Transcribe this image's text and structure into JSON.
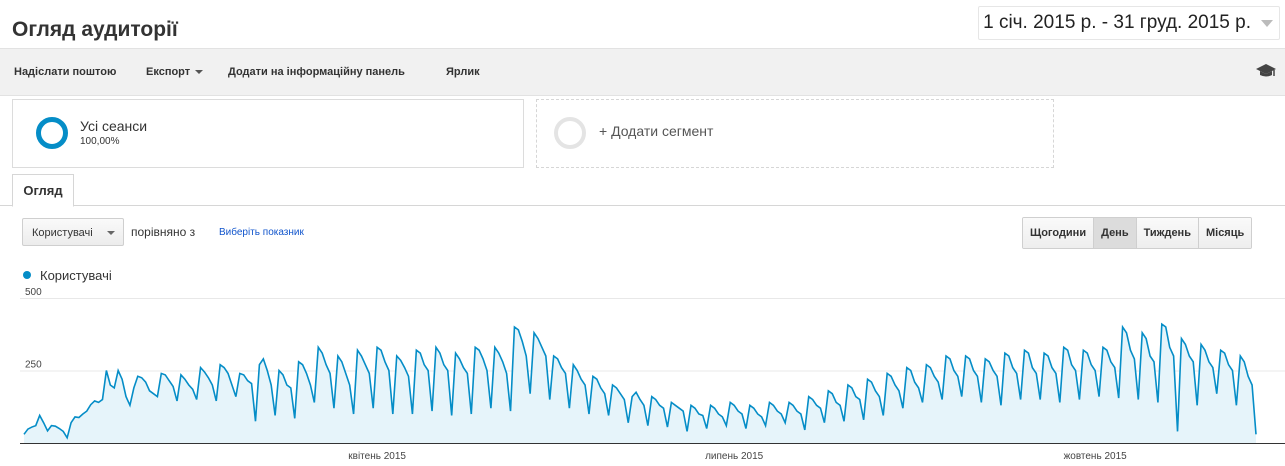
{
  "header": {
    "title": "Огляд аудиторії",
    "date_range": "1 січ. 2015 р. - 31 груд. 2015 р."
  },
  "toolbar": {
    "email": "Надіслати поштою",
    "export": "Експорт",
    "add_dashboard": "Додати на інформаційну панель",
    "shortcut": "Ярлик",
    "icon": "graduation-cap-icon"
  },
  "segments": {
    "all_sessions": {
      "name": "Усі сеанси",
      "percent": "100,00%"
    },
    "add_segment": "+ Додати сегмент"
  },
  "tabs": [
    {
      "label": "Огляд"
    }
  ],
  "controls": {
    "metric": "Користувачі",
    "compare_label": "порівняно з",
    "choose_metric": "Виберіть показник",
    "periods": [
      "Щогодини",
      "День",
      "Тиждень",
      "Місяць"
    ],
    "active_period": "День"
  },
  "colors": {
    "series": "#058dc7",
    "area": "#e6f4fa",
    "link": "#1155cc"
  },
  "chart_data": {
    "type": "area",
    "legend": "Користувачі",
    "ylim": [
      0,
      500
    ],
    "yticks": [
      "500",
      "250"
    ],
    "x_labels": [
      {
        "label": "квітень 2015",
        "day": 90
      },
      {
        "label": "липень 2015",
        "day": 181
      },
      {
        "label": "жовтень 2015",
        "day": 273
      }
    ],
    "series": [
      {
        "name": "Користувачі",
        "values": [
          30,
          48,
          55,
          60,
          95,
          70,
          42,
          60,
          58,
          50,
          40,
          18,
          70,
          90,
          88,
          100,
          110,
          132,
          145,
          140,
          150,
          250,
          200,
          190,
          250,
          220,
          160,
          130,
          190,
          230,
          225,
          210,
          180,
          170,
          160,
          240,
          235,
          215,
          195,
          145,
          235,
          220,
          200,
          185,
          150,
          260,
          245,
          225,
          200,
          145,
          270,
          260,
          240,
          200,
          160,
          240,
          235,
          215,
          205,
          75,
          270,
          290,
          250,
          200,
          95,
          250,
          235,
          200,
          190,
          85,
          280,
          270,
          240,
          200,
          140,
          330,
          310,
          270,
          240,
          120,
          300,
          280,
          240,
          200,
          100,
          320,
          300,
          270,
          240,
          120,
          330,
          320,
          280,
          250,
          100,
          300,
          285,
          260,
          230,
          100,
          320,
          310,
          270,
          250,
          110,
          330,
          310,
          270,
          250,
          95,
          310,
          290,
          260,
          240,
          100,
          330,
          320,
          290,
          250,
          120,
          330,
          310,
          280,
          240,
          110,
          400,
          390,
          350,
          300,
          170,
          380,
          360,
          330,
          300,
          150,
          300,
          290,
          260,
          240,
          120,
          270,
          250,
          220,
          200,
          100,
          230,
          220,
          190,
          170,
          95,
          200,
          190,
          170,
          150,
          70,
          160,
          175,
          150,
          130,
          60,
          160,
          150,
          130,
          120,
          55,
          140,
          130,
          120,
          110,
          40,
          130,
          120,
          100,
          95,
          50,
          130,
          120,
          100,
          90,
          60,
          140,
          130,
          110,
          100,
          50,
          130,
          120,
          100,
          90,
          60,
          140,
          130,
          110,
          100,
          70,
          140,
          130,
          110,
          100,
          45,
          160,
          150,
          130,
          120,
          70,
          180,
          170,
          140,
          130,
          75,
          200,
          190,
          160,
          150,
          80,
          220,
          210,
          180,
          160,
          95,
          240,
          230,
          200,
          180,
          120,
          260,
          250,
          210,
          190,
          140,
          270,
          260,
          230,
          210,
          150,
          300,
          290,
          250,
          230,
          160,
          300,
          290,
          250,
          230,
          140,
          290,
          280,
          250,
          230,
          130,
          310,
          300,
          260,
          240,
          150,
          320,
          310,
          260,
          240,
          150,
          310,
          300,
          260,
          240,
          140,
          330,
          320,
          270,
          250,
          150,
          320,
          310,
          270,
          250,
          160,
          330,
          320,
          280,
          260,
          155,
          400,
          380,
          320,
          290,
          150,
          380,
          360,
          300,
          280,
          140,
          410,
          400,
          330,
          300,
          40,
          360,
          340,
          300,
          280,
          130,
          340,
          320,
          280,
          260,
          170,
          320,
          310,
          270,
          250,
          130,
          300,
          280,
          230,
          200,
          30
        ]
      }
    ]
  }
}
